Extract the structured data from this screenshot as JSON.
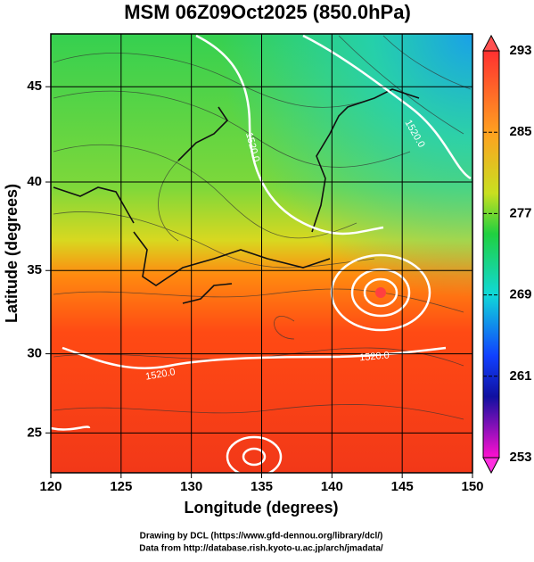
{
  "chart_data": {
    "type": "contour-map",
    "title": "MSM 06Z09Oct2025 (850.0hPa)",
    "xlabel": "Longitude (degrees)",
    "ylabel": "Latitude  (degrees)",
    "xlim": [
      120,
      150
    ],
    "xticks": [
      120,
      125,
      130,
      135,
      140,
      145,
      150
    ],
    "ylim": [
      22.4,
      47.6
    ],
    "yticks": [
      25,
      30,
      35,
      40,
      45
    ],
    "y_scale": "mercator",
    "grid": true,
    "colorbar": {
      "lim": [
        253,
        293
      ],
      "ticks": [
        253,
        261,
        269,
        277,
        285,
        293
      ]
    },
    "contour_labels": [
      "1520.0",
      "1520.0",
      "1520.0",
      "1520.0"
    ],
    "credits": [
      "Drawing by DCL (https://www.gfd-dennou.org/library/dcl/)",
      "Data from http://database.rish.kyoto-u.ac.jp/arch/jmadata/"
    ]
  }
}
